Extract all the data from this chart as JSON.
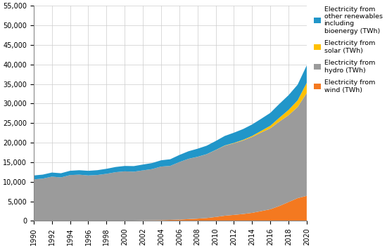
{
  "years": [
    1990,
    1991,
    1992,
    1993,
    1994,
    1995,
    1996,
    1997,
    1998,
    1999,
    2000,
    2001,
    2002,
    2003,
    2004,
    2005,
    2006,
    2007,
    2008,
    2009,
    2010,
    2011,
    2012,
    2013,
    2014,
    2015,
    2016,
    2017,
    2018,
    2019,
    2020
  ],
  "wind": [
    4,
    4,
    4,
    5,
    6,
    7,
    14,
    25,
    31,
    40,
    58,
    67,
    104,
    130,
    178,
    245,
    320,
    450,
    567,
    724,
    1000,
    1320,
    1530,
    1750,
    2050,
    2490,
    2960,
    3800,
    4800,
    5800,
    6400
  ],
  "hydro": [
    10600,
    10800,
    11300,
    11100,
    11700,
    11800,
    11600,
    11700,
    12000,
    12400,
    12600,
    12500,
    12800,
    13100,
    13700,
    13800,
    14700,
    15400,
    15800,
    16300,
    17100,
    17900,
    18300,
    18800,
    19400,
    20100,
    20700,
    21600,
    22200,
    23300,
    26300
  ],
  "solar": [
    0,
    0,
    0,
    0,
    0,
    0,
    0,
    1,
    1,
    1,
    1,
    2,
    2,
    3,
    4,
    5,
    6,
    8,
    14,
    22,
    33,
    64,
    100,
    160,
    260,
    420,
    660,
    980,
    1360,
    1700,
    2600
  ],
  "other_renewables": [
    1000,
    1020,
    1050,
    1070,
    1100,
    1140,
    1180,
    1230,
    1280,
    1330,
    1380,
    1430,
    1490,
    1540,
    1600,
    1700,
    1810,
    1930,
    2060,
    2160,
    2280,
    2430,
    2610,
    2750,
    2930,
    3090,
    3280,
    3540,
    3760,
    4010,
    4440
  ],
  "colors": {
    "wind": "#f47920",
    "hydro": "#9b9b9b",
    "solar": "#ffc000",
    "other_renewables": "#2196c9"
  },
  "legend_labels": [
    "Electricity from\nother renewables\nincluding\nbioenergy (TWh)",
    "Electricity from\nsolar (TWh)",
    "Electricity from\nhydro (TWh)",
    "Electricity from\nwind (TWh)"
  ],
  "ylim": [
    0,
    55000
  ],
  "yticks": [
    0,
    5000,
    10000,
    15000,
    20000,
    25000,
    30000,
    35000,
    40000,
    45000,
    50000,
    55000
  ],
  "background_color": "#ffffff",
  "grid_color": "#cccccc"
}
